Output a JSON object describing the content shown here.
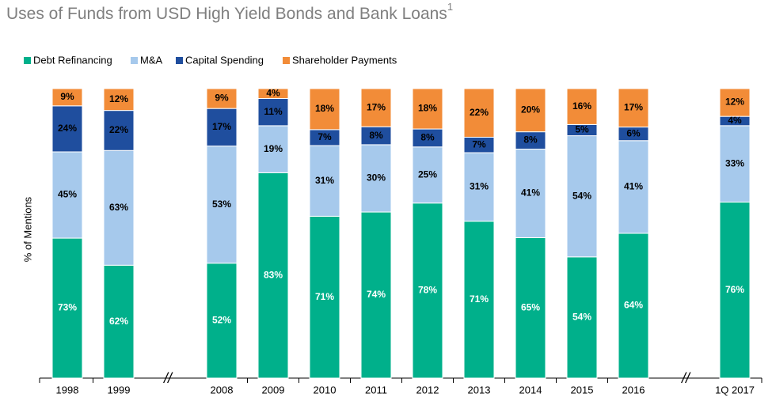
{
  "chart_data": {
    "type": "stacked_bar_100",
    "title": "Uses of Funds from USD High Yield Bonds and Bank Loans",
    "title_note": "1",
    "y_label": "% of Mentions",
    "break_mark": "//",
    "categories": [
      "1998",
      "1999",
      "2008",
      "2009",
      "2010",
      "2011",
      "2012",
      "2013",
      "2014",
      "2015",
      "2016",
      "1Q 2017"
    ],
    "series": [
      {
        "name": "Debt Refinancing",
        "color": "#00b08b",
        "values": [
          73,
          62,
          52,
          83,
          71,
          74,
          78,
          71,
          65,
          54,
          64,
          76
        ],
        "value_labels": [
          "73%",
          "62%",
          "52%",
          "83%",
          "71%",
          "74%",
          "78%",
          "71%",
          "65%",
          "54%",
          "64%",
          "76%"
        ]
      },
      {
        "name": "M&A",
        "color": "#a6c9ec",
        "values": [
          45,
          63,
          53,
          19,
          31,
          30,
          25,
          31,
          41,
          54,
          41,
          33
        ],
        "value_labels": [
          "45%",
          "63%",
          "53%",
          "19%",
          "31%",
          "30%",
          "25%",
          "31%",
          "41%",
          "54%",
          "41%",
          "33%"
        ]
      },
      {
        "name": "Capital Spending",
        "color": "#1f4e9e",
        "values": [
          24,
          22,
          17,
          11,
          7,
          8,
          8,
          7,
          8,
          5,
          6,
          4
        ],
        "value_labels": [
          "24%",
          "22%",
          "17%",
          "11%",
          "7%",
          "8%",
          "8%",
          "7%",
          "8%",
          "5%",
          "6%",
          "4%"
        ]
      },
      {
        "name": "Shareholder Payments",
        "color": "#f28c38",
        "values": [
          9,
          12,
          9,
          4,
          18,
          17,
          18,
          22,
          20,
          16,
          17,
          12
        ],
        "value_labels": [
          "9%",
          "12%",
          "9%",
          "4%",
          "18%",
          "17%",
          "18%",
          "22%",
          "20%",
          "16%",
          "17%",
          "12%"
        ]
      }
    ]
  }
}
